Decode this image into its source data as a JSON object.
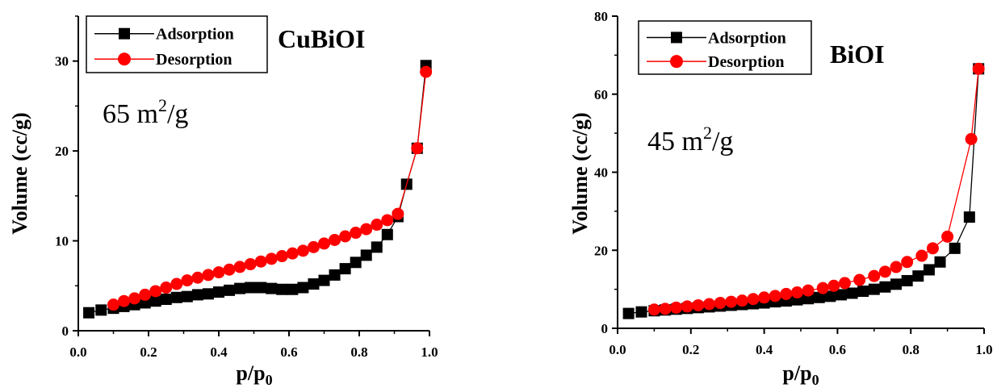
{
  "chart_data": [
    {
      "type": "line",
      "title": "CuBiOI",
      "annotation": {
        "value": "65 m",
        "superscript": "2",
        "suffix": "/g"
      },
      "xlabel": {
        "main": "p/p",
        "sub": "0"
      },
      "ylabel": "Volume (cc/g)",
      "xlim": [
        0.0,
        1.0
      ],
      "ylim": [
        0,
        35
      ],
      "xticks": [
        "0.0",
        "0.2",
        "0.4",
        "0.6",
        "0.8",
        "1.0"
      ],
      "yticks": [
        "0",
        "10",
        "20",
        "30"
      ],
      "legend_position": "top-left",
      "series": [
        {
          "name": "Adsorption",
          "color": "#000000",
          "marker": "square",
          "x": [
            0.03,
            0.065,
            0.1,
            0.13,
            0.16,
            0.19,
            0.22,
            0.25,
            0.28,
            0.31,
            0.34,
            0.37,
            0.4,
            0.43,
            0.46,
            0.49,
            0.52,
            0.55,
            0.58,
            0.61,
            0.64,
            0.67,
            0.7,
            0.73,
            0.76,
            0.79,
            0.82,
            0.85,
            0.88,
            0.91,
            0.935,
            0.965,
            0.99
          ],
          "y": [
            2.0,
            2.3,
            2.5,
            2.7,
            2.9,
            3.1,
            3.3,
            3.5,
            3.7,
            3.8,
            4.0,
            4.1,
            4.3,
            4.5,
            4.7,
            4.8,
            4.8,
            4.7,
            4.6,
            4.6,
            4.8,
            5.2,
            5.6,
            6.2,
            6.9,
            7.6,
            8.4,
            9.3,
            10.7,
            12.7,
            16.3,
            20.3,
            29.5
          ]
        },
        {
          "name": "Desorption",
          "color": "#ff0000",
          "marker": "circle",
          "x": [
            0.1,
            0.13,
            0.16,
            0.19,
            0.22,
            0.25,
            0.28,
            0.31,
            0.34,
            0.37,
            0.4,
            0.43,
            0.46,
            0.49,
            0.52,
            0.55,
            0.58,
            0.61,
            0.64,
            0.67,
            0.7,
            0.73,
            0.76,
            0.79,
            0.82,
            0.85,
            0.88,
            0.91,
            0.965,
            0.99
          ],
          "y": [
            2.9,
            3.3,
            3.6,
            4.0,
            4.4,
            4.8,
            5.2,
            5.6,
            5.9,
            6.2,
            6.5,
            6.8,
            7.1,
            7.4,
            7.7,
            8.0,
            8.3,
            8.6,
            8.9,
            9.3,
            9.7,
            10.1,
            10.5,
            10.9,
            11.3,
            11.8,
            12.3,
            13.0,
            20.3,
            28.8
          ]
        }
      ]
    },
    {
      "type": "line",
      "title": "BiOI",
      "annotation": {
        "value": "45 m",
        "superscript": "2",
        "suffix": "/g"
      },
      "xlabel": {
        "main": "p/p",
        "sub": "0"
      },
      "ylabel": "Volume (cc/g)",
      "xlim": [
        0.0,
        1.0
      ],
      "ylim": [
        0,
        80
      ],
      "xticks": [
        "0.0",
        "0.2",
        "0.4",
        "0.6",
        "0.8",
        "1.0"
      ],
      "yticks": [
        "0",
        "20",
        "40",
        "60",
        "80"
      ],
      "legend_position": "top-left",
      "series": [
        {
          "name": "Adsorption",
          "color": "#000000",
          "marker": "square",
          "x": [
            0.03,
            0.065,
            0.1,
            0.13,
            0.16,
            0.19,
            0.22,
            0.25,
            0.28,
            0.31,
            0.34,
            0.37,
            0.4,
            0.43,
            0.46,
            0.49,
            0.52,
            0.55,
            0.58,
            0.61,
            0.64,
            0.67,
            0.7,
            0.73,
            0.76,
            0.79,
            0.82,
            0.85,
            0.88,
            0.92,
            0.96,
            0.985
          ],
          "y": [
            3.8,
            4.2,
            4.5,
            4.7,
            4.9,
            5.1,
            5.3,
            5.5,
            5.7,
            5.9,
            6.1,
            6.3,
            6.5,
            6.8,
            7.0,
            7.3,
            7.6,
            7.9,
            8.2,
            8.6,
            9.0,
            9.5,
            10.0,
            10.6,
            11.3,
            12.2,
            13.4,
            15.0,
            17.0,
            20.5,
            28.5,
            66.5
          ]
        },
        {
          "name": "Desorption",
          "color": "#ff0000",
          "marker": "circle",
          "x": [
            0.1,
            0.13,
            0.16,
            0.19,
            0.22,
            0.25,
            0.28,
            0.31,
            0.34,
            0.37,
            0.4,
            0.43,
            0.46,
            0.49,
            0.52,
            0.56,
            0.59,
            0.62,
            0.66,
            0.7,
            0.73,
            0.76,
            0.79,
            0.83,
            0.86,
            0.9,
            0.965,
            0.985
          ],
          "y": [
            4.8,
            5.0,
            5.3,
            5.6,
            5.9,
            6.2,
            6.5,
            6.8,
            7.1,
            7.5,
            7.9,
            8.3,
            8.8,
            9.2,
            9.7,
            10.3,
            10.9,
            11.6,
            12.4,
            13.4,
            14.5,
            15.7,
            17.0,
            18.6,
            20.5,
            23.5,
            48.5,
            66.5
          ]
        }
      ]
    }
  ]
}
